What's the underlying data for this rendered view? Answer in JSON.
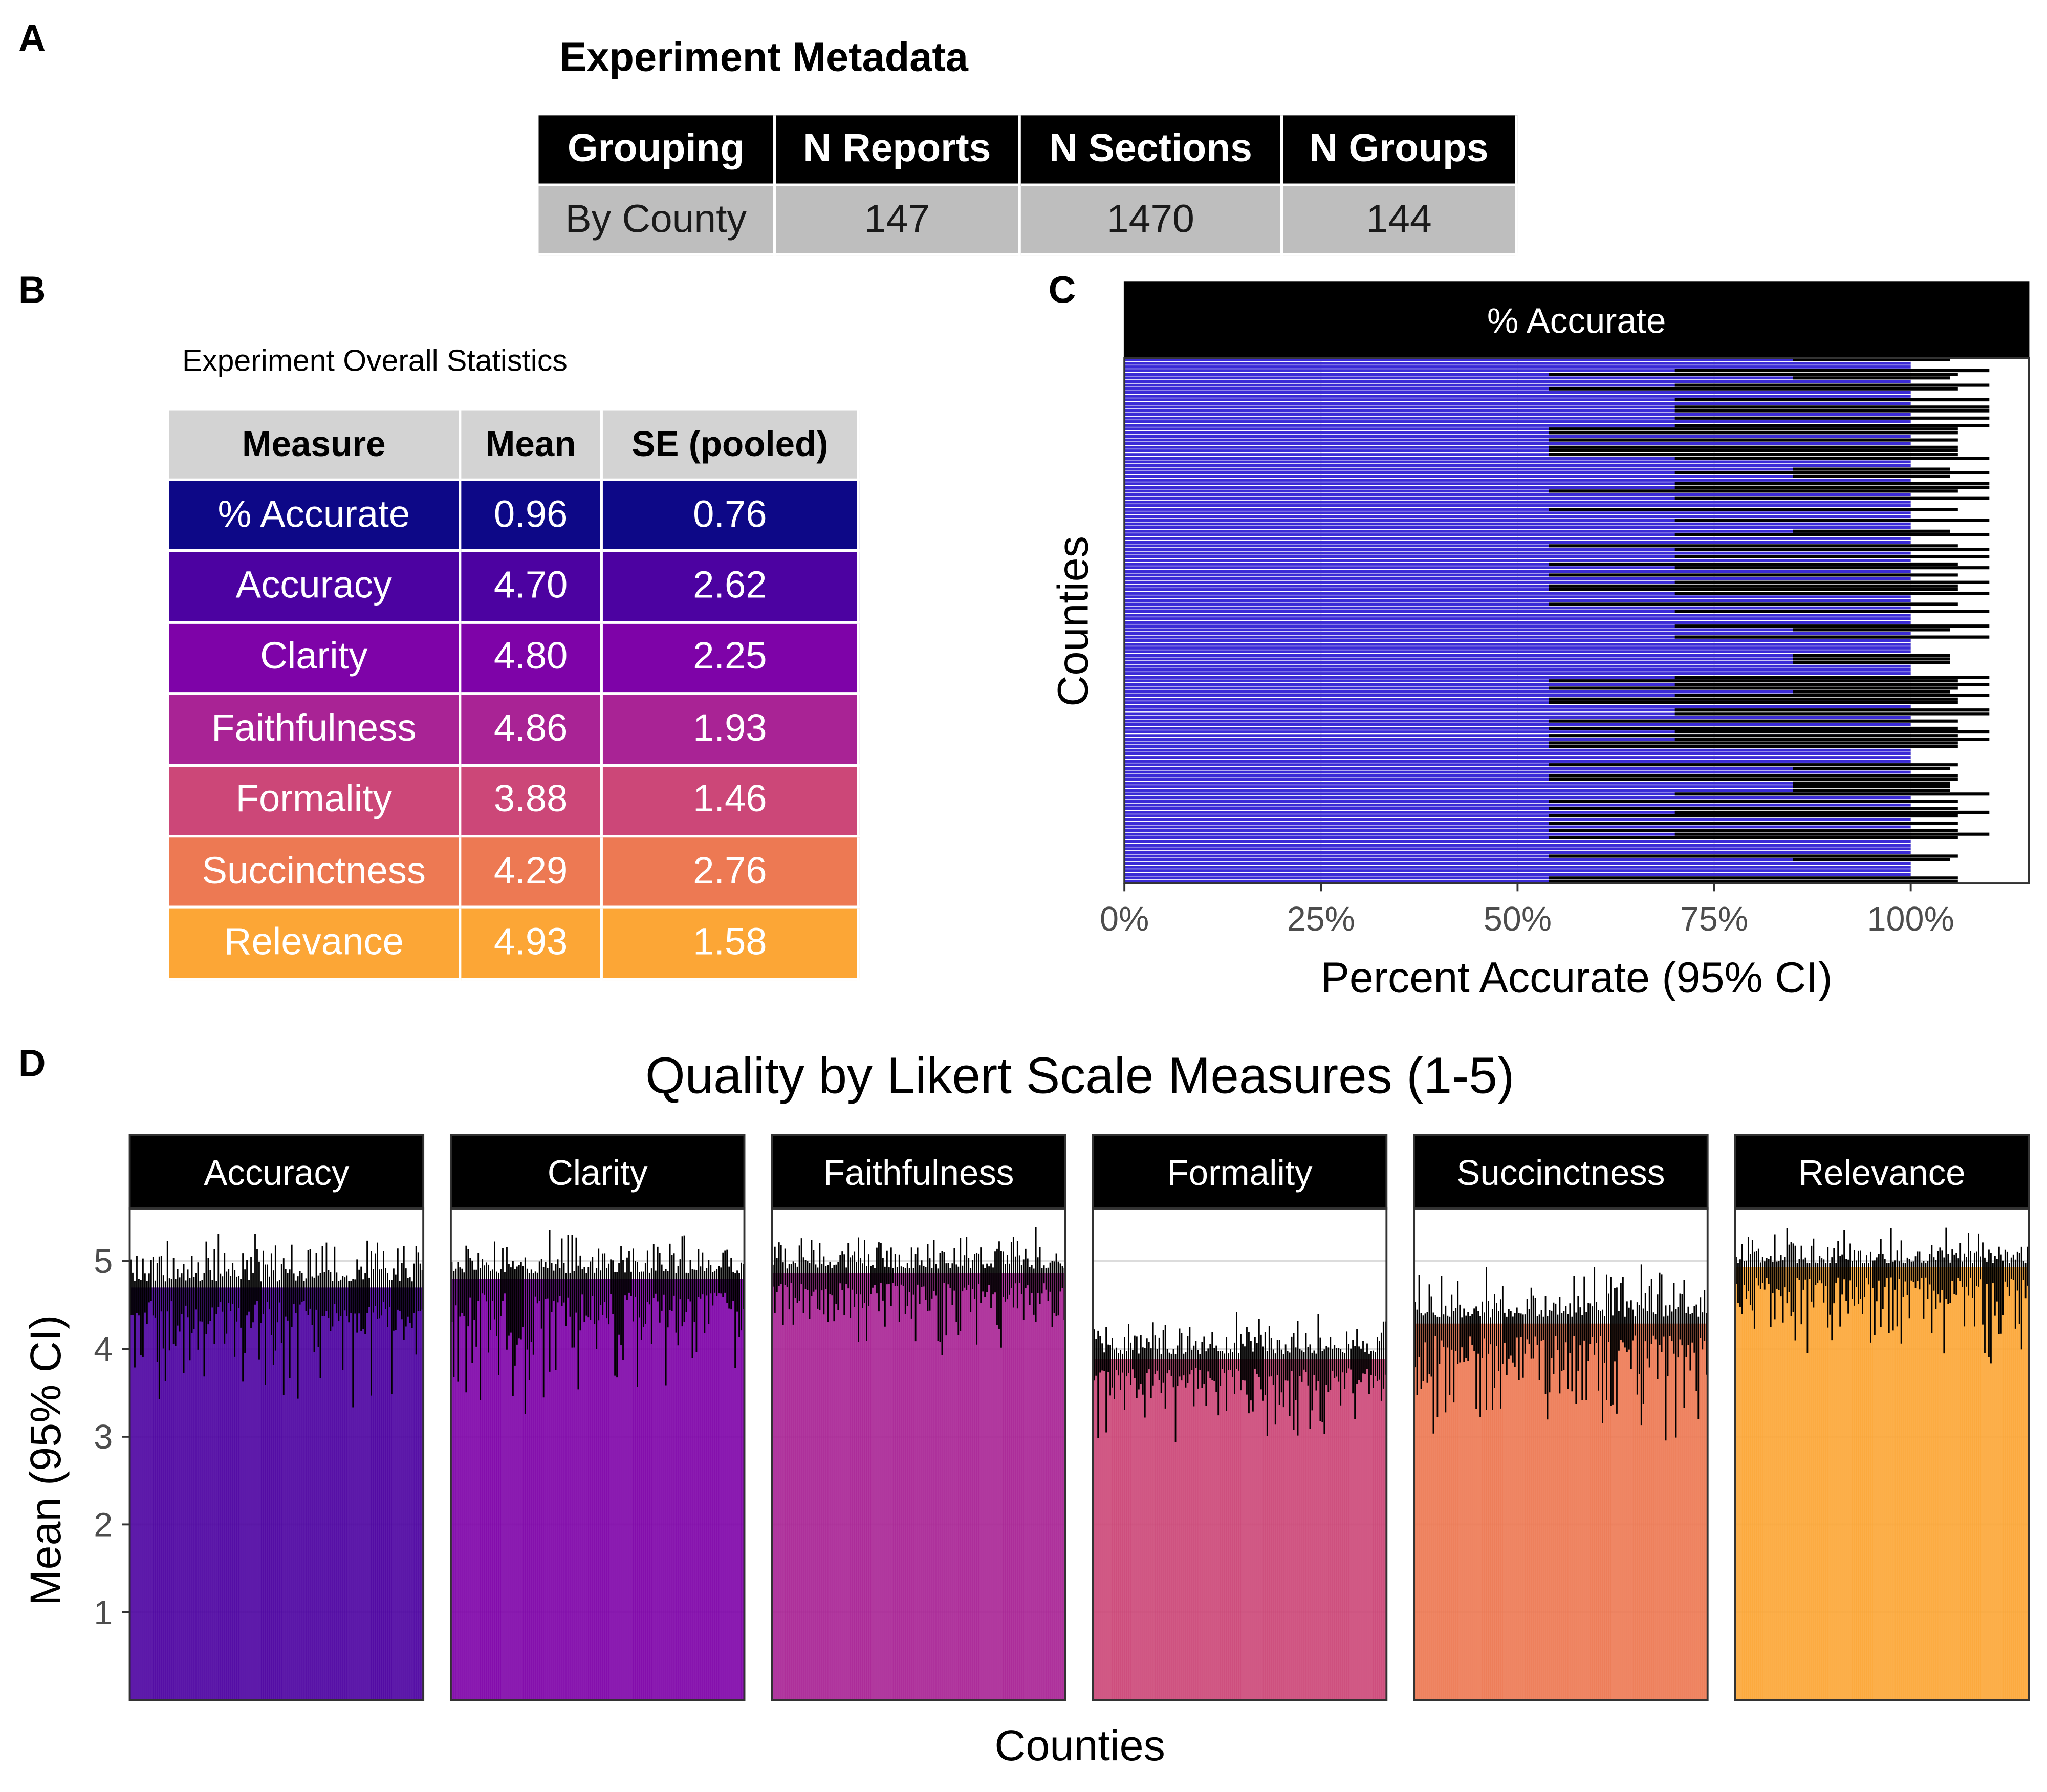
{
  "panels": {
    "a": "A",
    "b": "B",
    "c": "C",
    "d": "D"
  },
  "metadata": {
    "title": "Experiment Metadata",
    "columns": [
      "Grouping",
      "N Reports",
      "N Sections",
      "N Groups"
    ],
    "rows": [
      [
        "By County",
        "147",
        "1470",
        "144"
      ]
    ]
  },
  "overall_stats": {
    "title": "Experiment Overall Statistics",
    "columns": [
      "Measure",
      "Mean",
      "SE (pooled)"
    ],
    "rows": [
      {
        "measure": "% Accurate",
        "mean": "0.96",
        "se": "0.76",
        "color": "#0d0887"
      },
      {
        "measure": "Accuracy",
        "mean": "4.70",
        "se": "2.62",
        "color": "#4c02a1"
      },
      {
        "measure": "Clarity",
        "mean": "4.80",
        "se": "2.25",
        "color": "#7e03a8"
      },
      {
        "measure": "Faithfulness",
        "mean": "4.86",
        "se": "1.93",
        "color": "#a92395"
      },
      {
        "measure": "Formality",
        "mean": "3.88",
        "se": "1.46",
        "color": "#cc4778"
      },
      {
        "measure": "Succinctness",
        "mean": "4.29",
        "se": "2.76",
        "color": "#ed7953"
      },
      {
        "measure": "Relevance",
        "mean": "4.93",
        "se": "1.58",
        "color": "#fca636"
      }
    ]
  },
  "chart_data": [
    {
      "type": "bar",
      "orientation": "horizontal",
      "strip_label": "% Accurate",
      "xlabel": "Percent Accurate (95% CI)",
      "ylabel": "Counties",
      "xlim": [
        0,
        1.15
      ],
      "x_ticks": [
        "0%",
        "25%",
        "50%",
        "75%",
        "100%"
      ],
      "x_tick_values": [
        0,
        0.25,
        0.5,
        0.75,
        1.0
      ],
      "n_categories": 144,
      "series_color": "#3b2bd6",
      "values_approx": "all counties near 1.00 (100%)",
      "ci_pattern_sample": [
        {
          "lower": 0.54,
          "upper": 1.06
        },
        {
          "lower": 0.7,
          "upper": 1.1
        },
        {
          "lower": 0.54,
          "upper": 1.06
        },
        {
          "lower": 0.7,
          "upper": 1.1
        },
        {
          "lower": 0.54,
          "upper": 1.06
        },
        {
          "lower": 0.7,
          "upper": 1.1
        },
        {
          "lower": 0.85,
          "upper": 1.05
        }
      ]
    },
    {
      "type": "bar",
      "title": "Quality by Likert Scale Measures (1-5)",
      "xlabel": "Counties",
      "ylabel": "Mean (95% CI)",
      "ylim": [
        0,
        5.6
      ],
      "y_ticks": [
        "1",
        "2",
        "3",
        "4",
        "5"
      ],
      "y_tick_values": [
        1,
        2,
        3,
        4,
        5
      ],
      "n_categories": 144,
      "series": [
        {
          "name": "Accuracy",
          "mean": 4.7,
          "color": "#4c02a1",
          "ci_min": 3.2,
          "ci_max": 5.4
        },
        {
          "name": "Clarity",
          "mean": 4.8,
          "color": "#7e03a8",
          "ci_min": 3.2,
          "ci_max": 5.4
        },
        {
          "name": "Faithfulness",
          "mean": 4.86,
          "color": "#a92395",
          "ci_min": 3.8,
          "ci_max": 5.4
        },
        {
          "name": "Formality",
          "mean": 3.88,
          "color": "#cc4778",
          "ci_min": 2.9,
          "ci_max": 4.5
        },
        {
          "name": "Succinctness",
          "mean": 4.29,
          "color": "#ed7953",
          "ci_min": 2.9,
          "ci_max": 5.0
        },
        {
          "name": "Relevance",
          "mean": 4.93,
          "color": "#fca636",
          "ci_min": 3.8,
          "ci_max": 5.4
        }
      ]
    }
  ]
}
